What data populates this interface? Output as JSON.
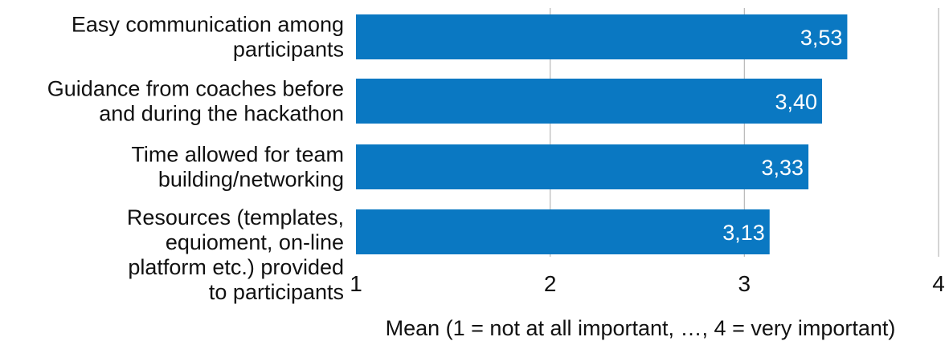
{
  "chart_data": {
    "type": "bar",
    "orientation": "horizontal",
    "categories": [
      [
        "Easy communication among",
        "participants"
      ],
      [
        "Guidance from coaches before",
        "and during the hackathon"
      ],
      [
        "Time allowed for team",
        "building/networking"
      ],
      [
        "Resources (templates,",
        "equioment, on-line",
        "platform etc.) provided",
        "to participants"
      ]
    ],
    "values": [
      3.53,
      3.4,
      3.33,
      3.13
    ],
    "value_labels": [
      "3,53",
      "3,40",
      "3,33",
      "3,13"
    ],
    "xticks": [
      "1",
      "2",
      "3",
      "4"
    ],
    "xlim": [
      1,
      4
    ],
    "xlabel": "Mean (1 = not at all important, …, 4 = very important)",
    "grid": "vertical",
    "colors": {
      "bar": "#0a78c2",
      "grid": "#b8b8b8",
      "text": "#111111",
      "value_text": "#ffffff"
    }
  }
}
